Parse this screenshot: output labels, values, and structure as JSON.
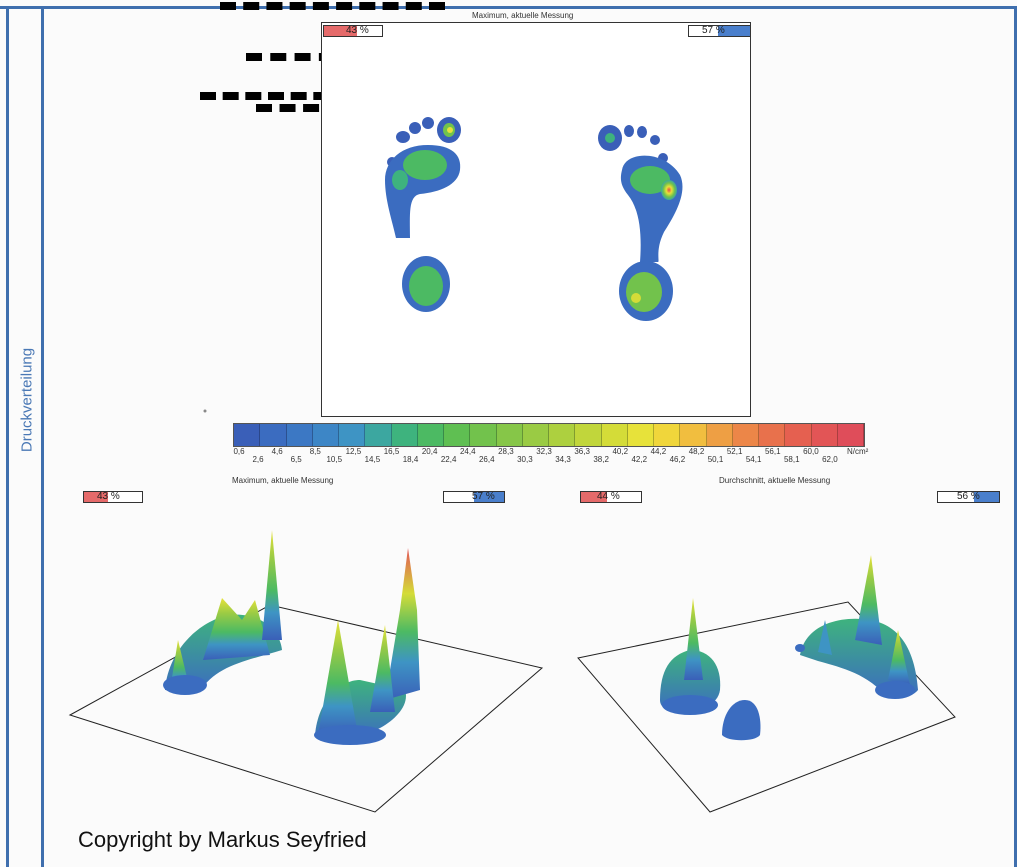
{
  "side_label": "Druckverteilung",
  "top_panel": {
    "title": "Maximum, aktuelle Messung",
    "left_pct": "43 %",
    "right_pct": "57 %"
  },
  "scale": {
    "unit": "N/cm²",
    "colors": [
      "#3a5fb8",
      "#3b6cc0",
      "#3c78c4",
      "#3d86c6",
      "#3e94c4",
      "#3ca7a0",
      "#3eb37e",
      "#4cba63",
      "#5fbf52",
      "#72c24c",
      "#86c648",
      "#9acb44",
      "#add03f",
      "#c1d63b",
      "#d4dc38",
      "#e7e23a",
      "#f0d63b",
      "#f1be3f",
      "#ee9f44",
      "#ec8648",
      "#e8714c",
      "#e56050",
      "#e25556",
      "#df4d5a"
    ],
    "ticks_upper": [
      "0,6",
      "4,6",
      "8,5",
      "12,5",
      "16,5",
      "20,4",
      "24,4",
      "28,3",
      "32,3",
      "36,3",
      "40,2",
      "44,2",
      "48,2",
      "52,1",
      "56,1",
      "60,0"
    ],
    "ticks_lower": [
      "2,6",
      "6,5",
      "10,5",
      "14,5",
      "18,4",
      "22,4",
      "26,4",
      "30,3",
      "34,3",
      "38,2",
      "42,2",
      "46,2",
      "50,1",
      "54,1",
      "58,1",
      "62,0"
    ]
  },
  "left_3d": {
    "title": "Maximum, aktuelle Messung",
    "left_pct": "43 %",
    "right_pct": "57 %"
  },
  "right_3d": {
    "title": "Durchschnitt, aktuelle Messung",
    "left_pct": "44 %",
    "right_pct": "56 %"
  },
  "copyright": "Copyright by Markus Seyfried"
}
